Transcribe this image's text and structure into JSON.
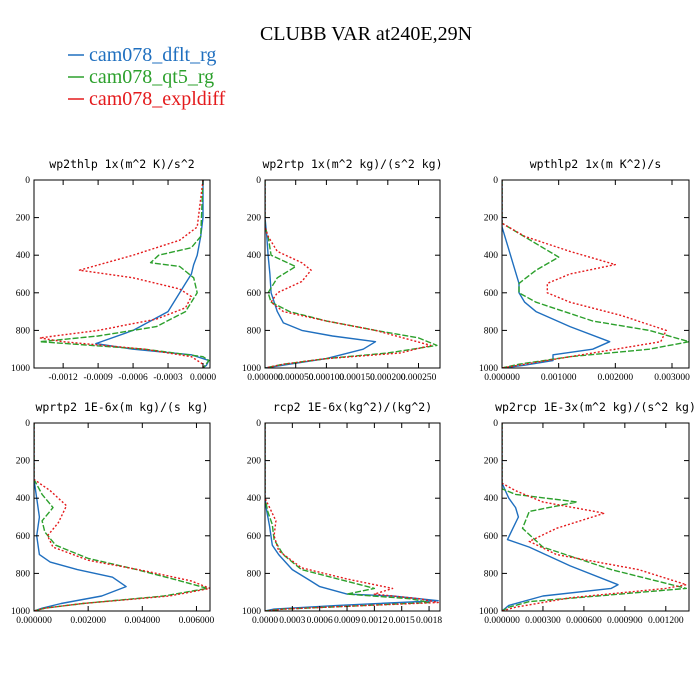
{
  "figure": {
    "title": "CLUBB VAR at240E,29N",
    "colors": {
      "dflt": "#1f6fbf",
      "qt5": "#2ca02c",
      "expl": "#e41a1c"
    }
  },
  "legend": [
    {
      "label": "cam078_dflt_rg",
      "color": "#1f6fbf",
      "dash": "solid"
    },
    {
      "label": "cam078_qt5_rg",
      "color": "#2ca02c",
      "dash": "dashed"
    },
    {
      "label": "cam078_expldiff",
      "color": "#e41a1c",
      "dash": "dotted"
    }
  ],
  "chart_data": [
    {
      "type": "line",
      "title": "wp2thlp  1x(m^2 K)/s^2",
      "xlim": [
        -0.00145,
        6e-05
      ],
      "ylim": [
        1000,
        0
      ],
      "xticks": [
        -0.0012,
        -0.0009,
        -0.0006,
        -0.0003,
        0.0
      ],
      "xtick_labels": [
        "-0.0012",
        "-0.0009",
        "-0.0006",
        "-0.0003",
        "0.0000"
      ],
      "yticks": [
        0,
        200,
        400,
        600,
        800,
        1000
      ],
      "ytick_labels": [
        "0",
        "200",
        "400",
        "600",
        "800",
        "1000"
      ],
      "series": [
        {
          "name": "cam078_dflt_rg",
          "color": "#1f6fbf",
          "dash": "solid",
          "x": [
            0,
            0,
            -2e-05,
            -5e-05,
            -8e-05,
            -0.0001,
            -0.00015,
            -0.0002,
            -0.0003,
            -0.0006,
            -0.00092,
            -0.0006,
            -0.0001,
            5e-05,
            3e-05,
            0
          ],
          "y": [
            0,
            200,
            300,
            400,
            450,
            500,
            550,
            600,
            700,
            800,
            870,
            900,
            930,
            960,
            985,
            1000
          ]
        },
        {
          "name": "cam078_qt5_rg",
          "color": "#2ca02c",
          "dash": "dashed",
          "x": [
            0,
            -2e-05,
            -0.0001,
            -0.00038,
            -0.00045,
            -0.0002,
            -8e-05,
            -5e-05,
            -0.00015,
            -0.0004,
            -0.0009,
            -0.0014,
            -0.0005,
            0,
            5e-05,
            2e-05,
            0
          ],
          "y": [
            0,
            300,
            360,
            400,
            440,
            460,
            520,
            600,
            700,
            780,
            830,
            860,
            900,
            940,
            960,
            985,
            1000
          ]
        },
        {
          "name": "cam078_expldiff",
          "color": "#e41a1c",
          "dash": "dotted",
          "x": [
            0,
            -5e-05,
            -0.0002,
            -0.0006,
            -0.00106,
            -0.0006,
            -0.0002,
            -0.0001,
            -0.00015,
            -0.0004,
            -0.0009,
            -0.0014,
            -0.0012,
            -0.0005,
            -0.0001,
            0,
            0
          ],
          "y": [
            0,
            250,
            320,
            400,
            480,
            520,
            580,
            620,
            680,
            740,
            800,
            840,
            860,
            900,
            940,
            980,
            1000
          ]
        }
      ]
    },
    {
      "type": "line",
      "title": "wp2rtp  1x(m^2 kg)/(s^2 kg)",
      "xlim": [
        0,
        0.000285
      ],
      "ylim": [
        1000,
        0
      ],
      "xticks": [
        0,
        5e-05,
        0.0001,
        0.00015,
        0.0002,
        0.00025
      ],
      "xtick_labels": [
        "0.000000",
        "0.000050",
        "0.000100",
        "0.000150",
        "0.000200",
        "0.000250"
      ],
      "yticks": [
        0,
        200,
        400,
        600,
        800,
        1000
      ],
      "ytick_labels": [
        "0",
        "200",
        "400",
        "600",
        "800",
        "1000"
      ],
      "series": [
        {
          "name": "cam078_dflt_rg",
          "color": "#1f6fbf",
          "dash": "solid",
          "x": [
            0,
            0,
            3e-06,
            5e-06,
            8e-06,
            1e-05,
            1.5e-05,
            2e-05,
            3e-05,
            6e-05,
            0.00011,
            0.00018,
            0.00016,
            0.0001,
            4e-05,
            0
          ],
          "y": [
            0,
            200,
            300,
            400,
            500,
            600,
            650,
            700,
            760,
            800,
            830,
            860,
            900,
            950,
            980,
            1000
          ]
        },
        {
          "name": "cam078_qt5_rg",
          "color": "#2ca02c",
          "dash": "dashed",
          "x": [
            0,
            0,
            5e-06,
            1e-05,
            5e-05,
            2e-05,
            5e-06,
            1e-05,
            4e-05,
            0.0001,
            0.00018,
            0.00025,
            0.00028,
            0.0002,
            0.0001,
            3e-05,
            0
          ],
          "y": [
            0,
            250,
            300,
            400,
            460,
            520,
            600,
            650,
            700,
            750,
            800,
            840,
            880,
            920,
            950,
            980,
            1000
          ]
        },
        {
          "name": "cam078_expldiff",
          "color": "#e41a1c",
          "dash": "dotted",
          "x": [
            0,
            0,
            5e-06,
            2e-05,
            6e-05,
            7.5e-05,
            6e-05,
            2e-05,
            1e-05,
            3e-05,
            0.0001,
            0.00018,
            0.00027,
            0.00022,
            0.0001,
            3e-05,
            0
          ],
          "y": [
            0,
            250,
            300,
            380,
            440,
            480,
            540,
            600,
            650,
            700,
            750,
            800,
            880,
            920,
            950,
            980,
            1000
          ]
        }
      ]
    },
    {
      "type": "line",
      "title": "wpthlp2  1x(m K^2)/s",
      "xlim": [
        0,
        0.0033
      ],
      "ylim": [
        1000,
        0
      ],
      "xticks": [
        0,
        0.001,
        0.002,
        0.003
      ],
      "xtick_labels": [
        "0.000000",
        "0.001000",
        "0.002000",
        "0.003000"
      ],
      "yticks": [
        0,
        200,
        400,
        600,
        800,
        1000
      ],
      "ytick_labels": [
        "0",
        "200",
        "400",
        "600",
        "800",
        "1000"
      ],
      "series": [
        {
          "name": "cam078_dflt_rg",
          "color": "#1f6fbf",
          "dash": "solid",
          "x": [
            0,
            0,
            0.0001,
            0.0002,
            0.0003,
            0.0003,
            0.0004,
            0.0006,
            0.0012,
            0.0019,
            0.0016,
            0.0009,
            0.0009,
            0.0004,
            0
          ],
          "y": [
            0,
            250,
            350,
            450,
            550,
            600,
            650,
            700,
            780,
            860,
            900,
            930,
            960,
            985,
            1000
          ]
        },
        {
          "name": "cam078_qt5_rg",
          "color": "#2ca02c",
          "dash": "dashed",
          "x": [
            0,
            0,
            0.0005,
            0.001,
            0.0006,
            0.0003,
            0.0003,
            0.0006,
            0.0016,
            0.0026,
            0.0033,
            0.0026,
            0.0012,
            0.0003,
            0
          ],
          "y": [
            0,
            230,
            320,
            410,
            480,
            550,
            600,
            650,
            750,
            800,
            860,
            900,
            940,
            980,
            1000
          ]
        },
        {
          "name": "cam078_expldiff",
          "color": "#e41a1c",
          "dash": "dotted",
          "x": [
            0,
            0,
            0.0004,
            0.0012,
            0.002,
            0.0012,
            0.0008,
            0.0008,
            0.0012,
            0.0021,
            0.0029,
            0.0028,
            0.0016,
            0.0004,
            0
          ],
          "y": [
            0,
            230,
            300,
            380,
            450,
            500,
            550,
            600,
            650,
            720,
            800,
            860,
            920,
            980,
            1000
          ]
        }
      ]
    },
    {
      "type": "line",
      "title": "wprtp2  1E-6x(m kg)/(s kg)",
      "xlim": [
        0,
        0.0065
      ],
      "ylim": [
        1000,
        0
      ],
      "xticks": [
        0,
        0.002,
        0.004,
        0.006
      ],
      "xtick_labels": [
        "0.000000",
        "0.002000",
        "0.004000",
        "0.006000"
      ],
      "yticks": [
        0,
        200,
        400,
        600,
        800,
        1000
      ],
      "ytick_labels": [
        "0",
        "200",
        "400",
        "600",
        "800",
        "1000"
      ],
      "series": [
        {
          "name": "cam078_dflt_rg",
          "color": "#1f6fbf",
          "dash": "solid",
          "x": [
            0,
            0,
            0.0001,
            0.0002,
            0.0001,
            0.0002,
            0.0006,
            0.0016,
            0.0029,
            0.0034,
            0.0025,
            0.001,
            0.0003,
            0
          ],
          "y": [
            0,
            300,
            400,
            500,
            600,
            700,
            740,
            780,
            820,
            870,
            920,
            960,
            985,
            1000
          ]
        },
        {
          "name": "cam078_qt5_rg",
          "color": "#2ca02c",
          "dash": "dashed",
          "x": [
            0,
            0,
            0.0003,
            0.0007,
            0.0003,
            0.0004,
            0.0008,
            0.002,
            0.0038,
            0.0054,
            0.0064,
            0.0048,
            0.0018,
            0.0004,
            0
          ],
          "y": [
            0,
            300,
            380,
            450,
            520,
            580,
            650,
            720,
            780,
            840,
            880,
            920,
            960,
            985,
            1000
          ]
        },
        {
          "name": "cam078_expldiff",
          "color": "#e41a1c",
          "dash": "dotted",
          "x": [
            0,
            0,
            0.0006,
            0.0012,
            0.0009,
            0.0005,
            0.0007,
            0.002,
            0.0042,
            0.0058,
            0.0065,
            0.005,
            0.0018,
            0.0004,
            0
          ],
          "y": [
            0,
            300,
            360,
            440,
            530,
            600,
            660,
            730,
            790,
            840,
            880,
            920,
            960,
            985,
            1000
          ]
        }
      ]
    },
    {
      "type": "line",
      "title": "rcp2  1E-6x(kg^2)/(kg^2)",
      "xlim": [
        0,
        0.00192
      ],
      "ylim": [
        1000,
        0
      ],
      "xticks": [
        0,
        0.0003,
        0.0006,
        0.0009,
        0.0012,
        0.0015,
        0.0018
      ],
      "xtick_labels": [
        "0.0000",
        "0.0003",
        "0.0006",
        "0.0009",
        "0.0012",
        "0.0015",
        "0.0018"
      ],
      "yticks": [
        0,
        200,
        400,
        600,
        800,
        1000
      ],
      "ytick_labels": [
        "0",
        "200",
        "400",
        "600",
        "800",
        "1000"
      ],
      "series": [
        {
          "name": "cam078_dflt_rg",
          "color": "#1f6fbf",
          "dash": "solid",
          "x": [
            0,
            0,
            2e-05,
            5e-05,
            8e-05,
            0.00015,
            0.0003,
            0.0005,
            0.0006,
            0.0009,
            0.0014,
            0.0019,
            0.0008,
            0.0001,
            0
          ],
          "y": [
            0,
            400,
            470,
            550,
            650,
            700,
            780,
            840,
            870,
            910,
            920,
            945,
            970,
            990,
            1000
          ]
        },
        {
          "name": "cam078_qt5_rg",
          "color": "#2ca02c",
          "dash": "dashed",
          "x": [
            0,
            0,
            3e-05,
            8e-05,
            0.0001,
            0.0002,
            0.0004,
            0.0008,
            0.0012,
            0.0009,
            0.0016,
            0.0018,
            0.0009,
            0.0002,
            0
          ],
          "y": [
            0,
            400,
            470,
            540,
            620,
            700,
            780,
            830,
            880,
            910,
            935,
            955,
            975,
            990,
            1000
          ]
        },
        {
          "name": "cam078_expldiff",
          "color": "#e41a1c",
          "dash": "dotted",
          "x": [
            0,
            0,
            5e-05,
            0.00012,
            0.0001,
            0.00015,
            0.0004,
            0.0009,
            0.0014,
            0.0012,
            0.0017,
            0.0019,
            0.0009,
            0.0002,
            0
          ],
          "y": [
            0,
            400,
            450,
            520,
            600,
            680,
            770,
            830,
            880,
            910,
            935,
            955,
            975,
            990,
            1000
          ]
        }
      ]
    },
    {
      "type": "line",
      "title": "wp2rcp  1E-3x(m^2 kg)/(s^2 kg)",
      "xlim": [
        0,
        0.00137
      ],
      "ylim": [
        1000,
        0
      ],
      "xticks": [
        0,
        0.0003,
        0.0006,
        0.0009,
        0.0012
      ],
      "xtick_labels": [
        "0.000000",
        "0.000300",
        "0.000600",
        "0.000900",
        "0.001200"
      ],
      "yticks": [
        0,
        200,
        400,
        600,
        800,
        1000
      ],
      "ytick_labels": [
        "0",
        "200",
        "400",
        "600",
        "800",
        "1000"
      ],
      "series": [
        {
          "name": "cam078_dflt_rg",
          "color": "#1f6fbf",
          "dash": "solid",
          "x": [
            0,
            0,
            5e-05,
            0.0001,
            0.00012,
            8e-05,
            4e-05,
            0.0002,
            0.0005,
            0.00085,
            0.0008,
            0.0003,
            5e-05,
            0
          ],
          "y": [
            0,
            320,
            400,
            450,
            500,
            560,
            620,
            660,
            760,
            860,
            880,
            920,
            970,
            1000
          ]
        },
        {
          "name": "cam078_qt5_rg",
          "color": "#2ca02c",
          "dash": "dashed",
          "x": [
            0,
            0,
            0.0001,
            0.00055,
            0.0002,
            0.00015,
            0.0003,
            0.0008,
            0.00135,
            0.0007,
            0.0002,
            5e-05,
            0
          ],
          "y": [
            0,
            350,
            380,
            420,
            470,
            560,
            660,
            780,
            880,
            920,
            950,
            980,
            1000
          ]
        },
        {
          "name": "cam078_expldiff",
          "color": "#e41a1c",
          "dash": "dotted",
          "x": [
            0,
            0,
            0.0001,
            0.0003,
            0.00075,
            0.0004,
            0.0002,
            0.0004,
            0.001,
            0.00135,
            0.0012,
            0.0005,
            0.0001,
            0
          ],
          "y": [
            0,
            320,
            360,
            420,
            480,
            560,
            630,
            700,
            780,
            860,
            880,
            930,
            980,
            1000
          ]
        }
      ]
    }
  ]
}
